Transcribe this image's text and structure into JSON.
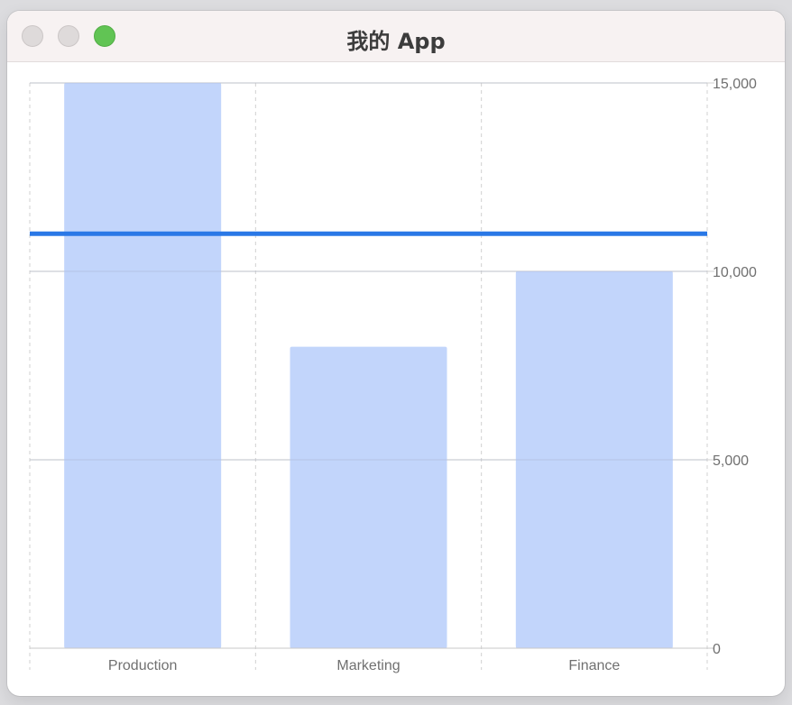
{
  "window": {
    "title": "我的 App"
  },
  "colors": {
    "bar": "#c2d5fb",
    "rule_line": "#2a78e6",
    "grid": "#d0d0d0",
    "close": "#dedada",
    "minimize": "#dedada",
    "zoom": "#61c454"
  },
  "chart_data": {
    "type": "bar",
    "categories": [
      "Production",
      "Marketing",
      "Finance"
    ],
    "values": [
      15000,
      8000,
      10000
    ],
    "rule_value": 11000,
    "ylim": [
      0,
      15000
    ],
    "y_ticks": [
      0,
      5000,
      10000,
      15000
    ],
    "y_tick_labels": [
      "0",
      "5,000",
      "10,000",
      "15,000"
    ],
    "y_axis_side": "right",
    "grid": true,
    "title": "",
    "xlabel": "",
    "ylabel": ""
  }
}
